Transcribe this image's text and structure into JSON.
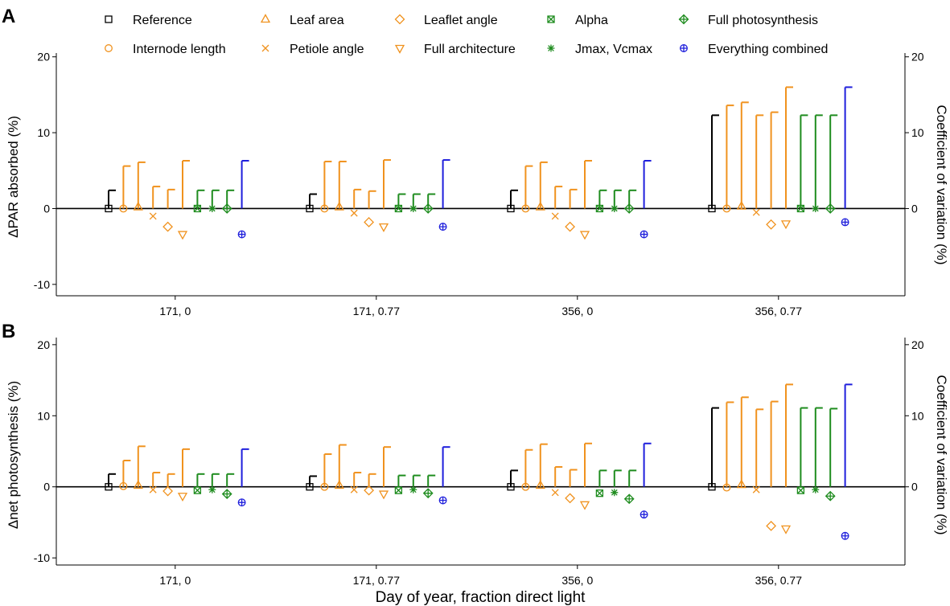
{
  "figure": {
    "x_axis_title": "Day of year, fraction direct light",
    "panel_labels": [
      "A",
      "B"
    ]
  },
  "legend": {
    "entries": [
      {
        "key": "ref",
        "label": "Reference",
        "marker": "square",
        "color": "#000000"
      },
      {
        "key": "inter",
        "label": "Internode length",
        "marker": "circle",
        "color": "#F0921E"
      },
      {
        "key": "leafa",
        "label": "Leaf area",
        "marker": "triangle-up",
        "color": "#F0921E"
      },
      {
        "key": "pet",
        "label": "Petiole angle",
        "marker": "cross",
        "color": "#F0921E"
      },
      {
        "key": "lfl",
        "label": "Leaflet angle",
        "marker": "diamond",
        "color": "#F0921E"
      },
      {
        "key": "farch",
        "label": "Full architecture",
        "marker": "triangle-down",
        "color": "#F0921E"
      },
      {
        "key": "alpha",
        "label": "Alpha",
        "marker": "boxed-x",
        "color": "#1E8C1E"
      },
      {
        "key": "jv",
        "label": "Jmax, Vcmax",
        "marker": "asterisk",
        "color": "#1E8C1E"
      },
      {
        "key": "fps",
        "label": "Full photosynthesis",
        "marker": "diamond-plus",
        "color": "#1E8C1E"
      },
      {
        "key": "all",
        "label": "Everything combined",
        "marker": "circle-plus",
        "color": "#1E1EDC"
      }
    ]
  },
  "chart_data": [
    {
      "type": "scatter",
      "panel": "A",
      "categories": [
        "171, 0",
        "171, 0.77",
        "356, 0",
        "356, 0.77"
      ],
      "ylabel": "ΔPAR absorbed (%)",
      "ylabel_right": "Coefficient of variation (%)",
      "ylim": [
        -11.5,
        20.5
      ],
      "yticks": [
        -10,
        0,
        10,
        20
      ],
      "yticks_right": [
        0,
        10,
        20
      ],
      "zero_line": true,
      "series": [
        {
          "name": "Reference",
          "values": [
            0,
            0,
            0,
            0
          ],
          "cv": [
            2.4,
            1.9,
            2.4,
            12.3
          ]
        },
        {
          "name": "Internode length",
          "values": [
            0,
            0,
            0,
            0
          ],
          "cv": [
            5.6,
            6.2,
            5.6,
            13.6
          ]
        },
        {
          "name": "Leaf area",
          "values": [
            0.2,
            0.2,
            0.2,
            0.3
          ],
          "cv": [
            6.1,
            6.2,
            6.1,
            14.0
          ]
        },
        {
          "name": "Petiole angle",
          "values": [
            -1.0,
            -0.6,
            -1.0,
            -0.5
          ],
          "cv": [
            2.9,
            2.5,
            2.9,
            12.3
          ]
        },
        {
          "name": "Leaflet angle",
          "values": [
            -2.4,
            -1.8,
            -2.4,
            -2.1
          ],
          "cv": [
            2.5,
            2.3,
            2.5,
            12.7
          ]
        },
        {
          "name": "Full architecture",
          "values": [
            -3.4,
            -2.4,
            -3.4,
            -2.0
          ],
          "cv": [
            6.3,
            6.4,
            6.3,
            16.0
          ]
        },
        {
          "name": "Alpha",
          "values": [
            0,
            0,
            0,
            0
          ],
          "cv": [
            2.4,
            1.9,
            2.4,
            12.3
          ]
        },
        {
          "name": "Jmax, Vcmax",
          "values": [
            0,
            0,
            0,
            0
          ],
          "cv": [
            2.4,
            1.9,
            2.4,
            12.3
          ]
        },
        {
          "name": "Full photosynthesis",
          "values": [
            0,
            0,
            0,
            0
          ],
          "cv": [
            2.4,
            1.9,
            2.4,
            12.3
          ]
        },
        {
          "name": "Everything combined",
          "values": [
            -3.4,
            -2.4,
            -3.4,
            -1.8
          ],
          "cv": [
            6.3,
            6.4,
            6.3,
            16.0
          ]
        }
      ]
    },
    {
      "type": "scatter",
      "panel": "B",
      "categories": [
        "171, 0",
        "171, 0.77",
        "356, 0",
        "356, 0.77"
      ],
      "ylabel": "Δnet photosynthesis (%)",
      "ylabel_right": "Coefficient of variation (%)",
      "ylim": [
        -11.0,
        21.0
      ],
      "yticks": [
        -10,
        0,
        10,
        20
      ],
      "yticks_right": [
        0,
        10,
        20
      ],
      "zero_line": true,
      "series": [
        {
          "name": "Reference",
          "values": [
            0,
            0,
            0,
            0
          ],
          "cv": [
            1.8,
            1.5,
            2.3,
            11.1
          ]
        },
        {
          "name": "Internode length",
          "values": [
            0.1,
            0,
            0,
            -0.1
          ],
          "cv": [
            3.7,
            4.6,
            5.2,
            11.9
          ]
        },
        {
          "name": "Leaf area",
          "values": [
            0.2,
            0.2,
            0.2,
            0.3
          ],
          "cv": [
            5.7,
            5.9,
            6.0,
            12.6
          ]
        },
        {
          "name": "Petiole angle",
          "values": [
            -0.4,
            -0.4,
            -0.8,
            -0.4
          ],
          "cv": [
            2.0,
            2.0,
            2.8,
            10.9
          ]
        },
        {
          "name": "Leaflet angle",
          "values": [
            -0.6,
            -0.5,
            -1.6,
            -5.5
          ],
          "cv": [
            1.8,
            1.8,
            2.4,
            12.0
          ]
        },
        {
          "name": "Full architecture",
          "values": [
            -1.3,
            -1.0,
            -2.5,
            -5.9
          ],
          "cv": [
            5.3,
            5.6,
            6.1,
            14.4
          ]
        },
        {
          "name": "Alpha",
          "values": [
            -0.5,
            -0.5,
            -0.9,
            -0.5
          ],
          "cv": [
            1.8,
            1.6,
            2.3,
            11.1
          ]
        },
        {
          "name": "Jmax, Vcmax",
          "values": [
            -0.4,
            -0.4,
            -0.8,
            -0.4
          ],
          "cv": [
            1.8,
            1.6,
            2.3,
            11.1
          ]
        },
        {
          "name": "Full photosynthesis",
          "values": [
            -1.0,
            -0.9,
            -1.7,
            -1.3
          ],
          "cv": [
            1.8,
            1.6,
            2.3,
            11.0
          ]
        },
        {
          "name": "Everything combined",
          "values": [
            -2.2,
            -1.9,
            -3.9,
            -6.9
          ],
          "cv": [
            5.3,
            5.6,
            6.1,
            14.4
          ]
        }
      ]
    }
  ]
}
